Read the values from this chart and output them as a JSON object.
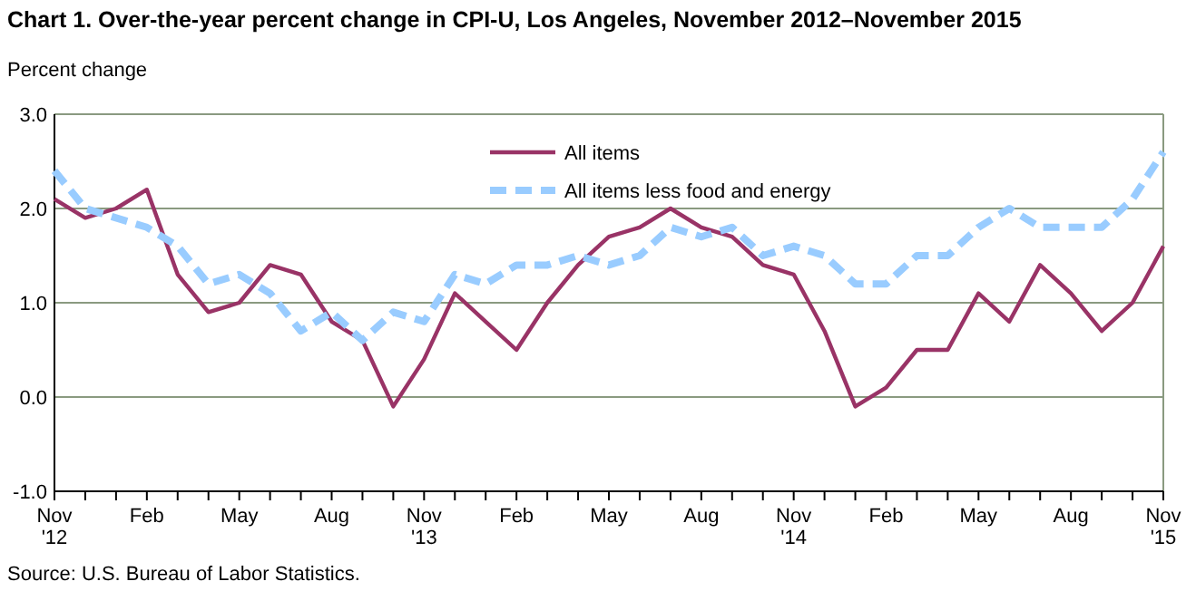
{
  "chart_data": {
    "type": "line",
    "title": "Chart 1. Over-the-year percent change in CPI-U, Los Angeles, November 2012–November 2015",
    "ylabel": "Percent change",
    "annotations": [
      "Source: U.S. Bureau of Labor Statistics."
    ],
    "categories": [
      "Nov\n'12",
      null,
      null,
      "Feb",
      null,
      null,
      "May",
      null,
      null,
      "Aug",
      null,
      null,
      "Nov\n'13",
      null,
      null,
      "Feb",
      null,
      null,
      "May",
      null,
      null,
      "Aug",
      null,
      null,
      "Nov\n'14",
      null,
      null,
      "Feb",
      null,
      null,
      "May",
      null,
      null,
      "Aug",
      null,
      null,
      "Nov\n'15"
    ],
    "series": [
      {
        "name": "All items",
        "color": "#993366",
        "line_style": "solid",
        "values": [
          2.1,
          1.9,
          2.0,
          2.2,
          1.3,
          0.9,
          1.0,
          1.4,
          1.3,
          0.8,
          0.6,
          -0.1,
          0.4,
          1.1,
          0.8,
          0.5,
          1.0,
          1.4,
          1.7,
          1.8,
          2.0,
          1.8,
          1.7,
          1.4,
          1.3,
          0.7,
          -0.1,
          0.1,
          0.5,
          0.5,
          1.1,
          0.8,
          1.4,
          1.1,
          0.7,
          1.0,
          1.6
        ]
      },
      {
        "name": "All items less food and energy",
        "color": "#99ccff",
        "line_style": "dashed",
        "values": [
          2.4,
          2.0,
          1.9,
          1.8,
          1.6,
          1.2,
          1.3,
          1.1,
          0.7,
          0.9,
          0.6,
          0.9,
          0.8,
          1.3,
          1.2,
          1.4,
          1.4,
          1.5,
          1.4,
          1.5,
          1.8,
          1.7,
          1.8,
          1.5,
          1.6,
          1.5,
          1.2,
          1.2,
          1.5,
          1.5,
          1.8,
          2.0,
          1.8,
          1.8,
          1.8,
          2.1,
          2.6
        ]
      }
    ],
    "ylim": [
      -1,
      3
    ],
    "yticks": [
      {
        "value": -1,
        "label": "-1.0"
      },
      {
        "value": 0,
        "label": "0.0"
      },
      {
        "value": 1,
        "label": "1.0"
      },
      {
        "value": 2,
        "label": "2.0"
      },
      {
        "value": 3,
        "label": "3.0"
      }
    ],
    "grid": "y",
    "legend": "top",
    "marker": "none"
  }
}
